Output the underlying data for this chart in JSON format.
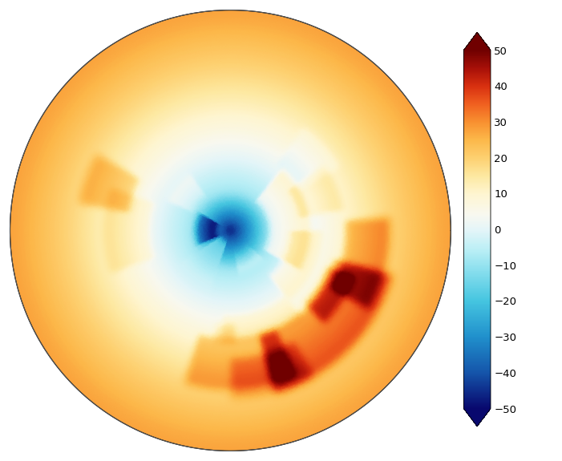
{
  "vmin": -50,
  "vmax": 50,
  "colorbar_ticks": [
    -50,
    -40,
    -30,
    -20,
    -10,
    0,
    10,
    20,
    30,
    40,
    50
  ],
  "colorbar_ticklabels": [
    "−50",
    "−40",
    "−30",
    "−20",
    "−10",
    "0",
    "10",
    "20",
    "30",
    "40",
    "50"
  ],
  "figsize": [
    7.01,
    5.75
  ],
  "dpi": 100,
  "background_color": "#ffffff",
  "coast_linewidth": 0.5,
  "coast_color": "#333333",
  "cmap_nodes": [
    [
      0.0,
      "#08086e"
    ],
    [
      0.1,
      "#1555aa"
    ],
    [
      0.2,
      "#2090cc"
    ],
    [
      0.3,
      "#45c5e0"
    ],
    [
      0.38,
      "#85dded"
    ],
    [
      0.44,
      "#b8eef5"
    ],
    [
      0.5,
      "#e5f5f8"
    ],
    [
      0.54,
      "#f8f8f0"
    ],
    [
      0.6,
      "#fef5d0"
    ],
    [
      0.65,
      "#fde8a0"
    ],
    [
      0.7,
      "#fdd070"
    ],
    [
      0.75,
      "#fcb84a"
    ],
    [
      0.8,
      "#f89030"
    ],
    [
      0.85,
      "#f06020"
    ],
    [
      0.9,
      "#d83010"
    ],
    [
      0.95,
      "#a81008"
    ],
    [
      1.0,
      "#700000"
    ]
  ]
}
